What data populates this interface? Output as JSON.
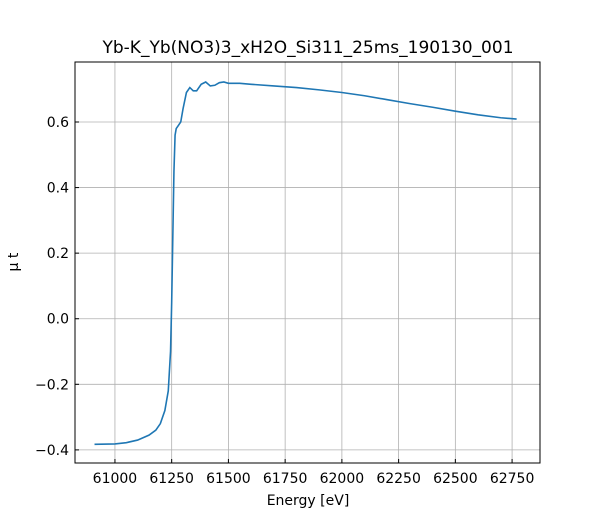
{
  "chart_data": {
    "type": "line",
    "title": "Yb-K_Yb(NO3)3_xH2O_Si311_25ms_190130_001",
    "x_label": "Energy [eV]",
    "y_label": "μ t",
    "grid": true,
    "series": [
      {
        "color": "#1f77b4",
        "x": [
          60910,
          61000,
          61050,
          61100,
          61150,
          61180,
          61200,
          61220,
          61235,
          61245,
          61250,
          61255,
          61260,
          61265,
          61270,
          61280,
          61290,
          61300,
          61315,
          61330,
          61345,
          61360,
          61380,
          61400,
          61420,
          61440,
          61460,
          61480,
          61500,
          61550,
          61600,
          61700,
          61800,
          61900,
          62000,
          62100,
          62200,
          62300,
          62400,
          62500,
          62600,
          62700,
          62770
        ],
        "values": [
          -0.383,
          -0.382,
          -0.378,
          -0.37,
          -0.355,
          -0.34,
          -0.32,
          -0.28,
          -0.22,
          -0.1,
          0.05,
          0.25,
          0.45,
          0.56,
          0.58,
          0.59,
          0.6,
          0.64,
          0.69,
          0.705,
          0.695,
          0.695,
          0.715,
          0.722,
          0.71,
          0.712,
          0.72,
          0.722,
          0.718,
          0.718,
          0.715,
          0.71,
          0.705,
          0.698,
          0.69,
          0.68,
          0.668,
          0.656,
          0.645,
          0.633,
          0.622,
          0.613,
          0.609
        ]
      }
    ],
    "xlim": [
      60824,
      62873
    ],
    "xticks": [
      61000,
      61250,
      61500,
      61750,
      62000,
      62250,
      62500,
      62750
    ],
    "ylim": [
      -0.44,
      0.783
    ],
    "yticks": [
      {
        "value": -0.4,
        "label": "−0.4"
      },
      {
        "value": -0.2,
        "label": "−0.2"
      },
      {
        "value": 0,
        "label": "0.0"
      },
      0.2,
      0.4,
      0.6
    ]
  }
}
